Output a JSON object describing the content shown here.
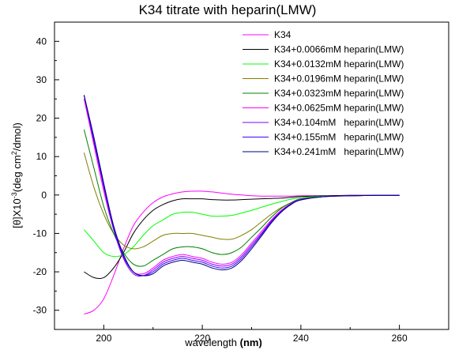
{
  "chart_data": {
    "type": "line",
    "title": "K34 titrate with heparin(LMW)",
    "xlabel_prefix": "wavelength ",
    "xlabel_unit": "(nm)",
    "ylabel_main": "[θ]X10",
    "ylabel_exp": "-3",
    "ylabel_unit_a": "(deg cm",
    "ylabel_unit_exp": "2",
    "ylabel_unit_b": "/dmol)",
    "xlim": [
      190,
      270
    ],
    "ylim": [
      -35,
      45
    ],
    "xticks": [
      200,
      220,
      240,
      260
    ],
    "yticks": [
      -30,
      -20,
      -10,
      0,
      10,
      20,
      30,
      40
    ],
    "grid": false,
    "legend_position": "top-right",
    "series": [
      {
        "name": "K34",
        "color": "#ff00ff",
        "points": [
          [
            196,
            -31
          ],
          [
            198,
            -30
          ],
          [
            200,
            -27
          ],
          [
            202,
            -21
          ],
          [
            204,
            -14
          ],
          [
            206,
            -8
          ],
          [
            208,
            -4.5
          ],
          [
            210,
            -2
          ],
          [
            212,
            -0.5
          ],
          [
            214,
            0.3
          ],
          [
            216,
            0.8
          ],
          [
            218,
            1
          ],
          [
            220,
            1
          ],
          [
            222,
            0.8
          ],
          [
            224,
            0.5
          ],
          [
            226,
            0.2
          ],
          [
            228,
            0
          ],
          [
            230,
            -0.2
          ],
          [
            232,
            -0.3
          ],
          [
            234,
            -0.3
          ],
          [
            236,
            -0.3
          ],
          [
            238,
            -0.3
          ],
          [
            240,
            -0.2
          ],
          [
            245,
            -0.2
          ],
          [
            250,
            -0.1
          ],
          [
            255,
            -0.1
          ],
          [
            260,
            -0.1
          ]
        ]
      },
      {
        "name": "K34+0.0066mM heparin(LMW)",
        "color": "#000000",
        "points": [
          [
            196,
            -20
          ],
          [
            198,
            -21.5
          ],
          [
            200,
            -21.5
          ],
          [
            202,
            -19
          ],
          [
            204,
            -15
          ],
          [
            206,
            -10
          ],
          [
            208,
            -6.5
          ],
          [
            210,
            -4
          ],
          [
            212,
            -2.5
          ],
          [
            214,
            -1.5
          ],
          [
            216,
            -1
          ],
          [
            218,
            -1
          ],
          [
            220,
            -1
          ],
          [
            222,
            -1.2
          ],
          [
            224,
            -1.3
          ],
          [
            226,
            -1.3
          ],
          [
            228,
            -1.2
          ],
          [
            230,
            -1.1
          ],
          [
            232,
            -1
          ],
          [
            234,
            -0.9
          ],
          [
            236,
            -0.8
          ],
          [
            238,
            -0.6
          ],
          [
            240,
            -0.4
          ],
          [
            245,
            -0.2
          ],
          [
            250,
            -0.1
          ],
          [
            255,
            -0.1
          ],
          [
            260,
            -0.1
          ]
        ]
      },
      {
        "name": "K34+0.0132mM heparin(LMW)",
        "color": "#00ff00",
        "points": [
          [
            196,
            -9
          ],
          [
            198,
            -12
          ],
          [
            200,
            -15
          ],
          [
            202,
            -16
          ],
          [
            204,
            -15.5
          ],
          [
            206,
            -13.5
          ],
          [
            208,
            -10.5
          ],
          [
            210,
            -8
          ],
          [
            212,
            -6.5
          ],
          [
            214,
            -5
          ],
          [
            216,
            -4.5
          ],
          [
            218,
            -4.5
          ],
          [
            220,
            -5
          ],
          [
            222,
            -5.5
          ],
          [
            224,
            -5.5
          ],
          [
            226,
            -5.3
          ],
          [
            228,
            -4.7
          ],
          [
            230,
            -4
          ],
          [
            232,
            -3.2
          ],
          [
            234,
            -2.4
          ],
          [
            236,
            -1.7
          ],
          [
            238,
            -1.1
          ],
          [
            240,
            -0.7
          ],
          [
            245,
            -0.3
          ],
          [
            250,
            -0.2
          ],
          [
            255,
            -0.1
          ],
          [
            260,
            -0.1
          ]
        ]
      },
      {
        "name": "K34+0.0196mM heparin(LMW)",
        "color": "#808000",
        "points": [
          [
            196,
            11
          ],
          [
            198,
            2
          ],
          [
            200,
            -5
          ],
          [
            202,
            -10
          ],
          [
            204,
            -13
          ],
          [
            206,
            -14
          ],
          [
            208,
            -13.5
          ],
          [
            210,
            -12
          ],
          [
            212,
            -10.5
          ],
          [
            214,
            -10
          ],
          [
            216,
            -10
          ],
          [
            218,
            -10
          ],
          [
            220,
            -10.5
          ],
          [
            222,
            -11
          ],
          [
            224,
            -11.5
          ],
          [
            226,
            -11.5
          ],
          [
            228,
            -10.5
          ],
          [
            230,
            -9
          ],
          [
            232,
            -7
          ],
          [
            234,
            -5
          ],
          [
            236,
            -3.3
          ],
          [
            238,
            -2
          ],
          [
            240,
            -1.1
          ],
          [
            245,
            -0.4
          ],
          [
            250,
            -0.2
          ],
          [
            255,
            -0.1
          ],
          [
            260,
            -0.1
          ]
        ]
      },
      {
        "name": "K34+0.0323mM heparin(LMW)",
        "color": "#008000",
        "points": [
          [
            196,
            17
          ],
          [
            198,
            7
          ],
          [
            200,
            -3
          ],
          [
            202,
            -10
          ],
          [
            204,
            -15
          ],
          [
            206,
            -18
          ],
          [
            208,
            -18.5
          ],
          [
            210,
            -17
          ],
          [
            212,
            -15.5
          ],
          [
            214,
            -14
          ],
          [
            216,
            -13.5
          ],
          [
            218,
            -13.5
          ],
          [
            220,
            -14
          ],
          [
            222,
            -15
          ],
          [
            224,
            -15.5
          ],
          [
            226,
            -15
          ],
          [
            228,
            -13.5
          ],
          [
            230,
            -11
          ],
          [
            232,
            -8.5
          ],
          [
            234,
            -5.8
          ],
          [
            236,
            -3.5
          ],
          [
            238,
            -2
          ],
          [
            240,
            -1
          ],
          [
            245,
            -0.4
          ],
          [
            250,
            -0.2
          ],
          [
            255,
            -0.1
          ],
          [
            260,
            -0.1
          ]
        ]
      },
      {
        "name": "K34+0.0625mM heparin(LMW)",
        "color": "#ff00ff",
        "points": [
          [
            196,
            25
          ],
          [
            198,
            13
          ],
          [
            200,
            1
          ],
          [
            202,
            -9
          ],
          [
            204,
            -16
          ],
          [
            206,
            -20
          ],
          [
            208,
            -20.5
          ],
          [
            210,
            -19
          ],
          [
            212,
            -17
          ],
          [
            214,
            -16
          ],
          [
            216,
            -15.5
          ],
          [
            218,
            -16
          ],
          [
            220,
            -16.5
          ],
          [
            222,
            -17.5
          ],
          [
            224,
            -18
          ],
          [
            226,
            -17.5
          ],
          [
            228,
            -15.5
          ],
          [
            230,
            -12.5
          ],
          [
            232,
            -9.5
          ],
          [
            234,
            -6.5
          ],
          [
            236,
            -4
          ],
          [
            238,
            -2.2
          ],
          [
            240,
            -1.1
          ],
          [
            245,
            -0.4
          ],
          [
            250,
            -0.2
          ],
          [
            255,
            -0.1
          ],
          [
            260,
            -0.1
          ]
        ]
      },
      {
        "name": "K34+0.104mM   heparin(LMW)",
        "color": "#8000ff",
        "points": [
          [
            196,
            26
          ],
          [
            198,
            14
          ],
          [
            200,
            2
          ],
          [
            202,
            -9
          ],
          [
            204,
            -16.5
          ],
          [
            206,
            -20.5
          ],
          [
            208,
            -21
          ],
          [
            210,
            -19.5
          ],
          [
            212,
            -17.5
          ],
          [
            214,
            -16.5
          ],
          [
            216,
            -16
          ],
          [
            218,
            -16.5
          ],
          [
            220,
            -17
          ],
          [
            222,
            -18
          ],
          [
            224,
            -18.5
          ],
          [
            226,
            -18
          ],
          [
            228,
            -16
          ],
          [
            230,
            -13
          ],
          [
            232,
            -10
          ],
          [
            234,
            -6.8
          ],
          [
            236,
            -4.2
          ],
          [
            238,
            -2.3
          ],
          [
            240,
            -1.2
          ],
          [
            245,
            -0.4
          ],
          [
            250,
            -0.2
          ],
          [
            255,
            -0.1
          ],
          [
            260,
            -0.1
          ]
        ]
      },
      {
        "name": "K34+0.155mM   heparin(LMW)",
        "color": "#4000ff",
        "points": [
          [
            196,
            26
          ],
          [
            198,
            14
          ],
          [
            200,
            2.5
          ],
          [
            202,
            -8.5
          ],
          [
            204,
            -16
          ],
          [
            206,
            -20
          ],
          [
            208,
            -21
          ],
          [
            210,
            -20
          ],
          [
            212,
            -18
          ],
          [
            214,
            -17
          ],
          [
            216,
            -16.5
          ],
          [
            218,
            -17
          ],
          [
            220,
            -17.5
          ],
          [
            222,
            -18.5
          ],
          [
            224,
            -19
          ],
          [
            226,
            -18.5
          ],
          [
            228,
            -16.5
          ],
          [
            230,
            -13.5
          ],
          [
            232,
            -10.3
          ],
          [
            234,
            -7
          ],
          [
            236,
            -4.3
          ],
          [
            238,
            -2.4
          ],
          [
            240,
            -1.2
          ],
          [
            245,
            -0.4
          ],
          [
            250,
            -0.2
          ],
          [
            255,
            -0.1
          ],
          [
            260,
            -0.1
          ]
        ]
      },
      {
        "name": "K34+0.241mM   heparin(LMW)",
        "color": "#000080",
        "points": [
          [
            196,
            26
          ],
          [
            198,
            15
          ],
          [
            200,
            3
          ],
          [
            202,
            -8
          ],
          [
            204,
            -15.5
          ],
          [
            206,
            -20
          ],
          [
            208,
            -21
          ],
          [
            210,
            -20.5
          ],
          [
            212,
            -18.5
          ],
          [
            214,
            -17.5
          ],
          [
            216,
            -17
          ],
          [
            218,
            -17.5
          ],
          [
            220,
            -18
          ],
          [
            222,
            -19
          ],
          [
            224,
            -19.5
          ],
          [
            226,
            -19
          ],
          [
            228,
            -17
          ],
          [
            230,
            -14
          ],
          [
            232,
            -10.7
          ],
          [
            234,
            -7.3
          ],
          [
            236,
            -4.5
          ],
          [
            238,
            -2.5
          ],
          [
            240,
            -1.3
          ],
          [
            245,
            -0.4
          ],
          [
            250,
            -0.2
          ],
          [
            255,
            -0.1
          ],
          [
            260,
            -0.1
          ]
        ]
      }
    ]
  }
}
